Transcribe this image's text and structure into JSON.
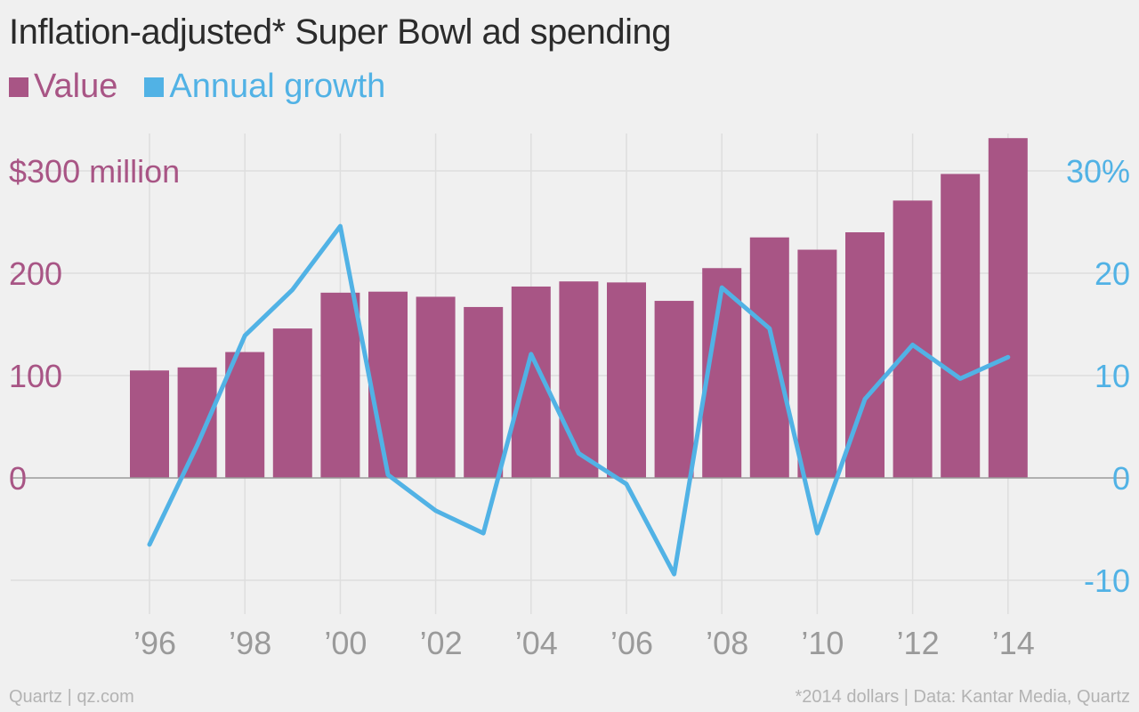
{
  "title": "Inflation-adjusted* Super Bowl ad spending",
  "legend": {
    "value_label": "Value",
    "growth_label": "Annual growth"
  },
  "footer": {
    "left": "Quartz | qz.com",
    "right": "*2014 dollars | Data: Kantar Media, Quartz"
  },
  "colors": {
    "value": "#a85585",
    "growth": "#51b2e5",
    "grid": "#dedede",
    "zero_line": "#9a9a9a",
    "x_tick_text": "#9a9a9a"
  },
  "chart_data": {
    "type": "bar+line",
    "title": "Inflation-adjusted* Super Bowl ad spending",
    "x": [
      1996,
      1997,
      1998,
      1999,
      2000,
      2001,
      2002,
      2003,
      2004,
      2005,
      2006,
      2007,
      2008,
      2009,
      2010,
      2011,
      2012,
      2013,
      2014
    ],
    "x_tick_labels": [
      "’96",
      "’98",
      "’00",
      "’02",
      "’04",
      "’06",
      "’08",
      "’10",
      "’12",
      "’14"
    ],
    "x_tick_years": [
      1996,
      1998,
      2000,
      2002,
      2004,
      2006,
      2008,
      2010,
      2012,
      2014
    ],
    "series": [
      {
        "name": "Value",
        "type": "bar",
        "axis": "left",
        "unit": "$ million",
        "values": [
          105,
          108,
          123,
          146,
          181,
          182,
          177,
          167,
          187,
          192,
          191,
          173,
          205,
          235,
          223,
          240,
          271,
          297,
          332
        ]
      },
      {
        "name": "Annual growth",
        "type": "line",
        "axis": "right",
        "unit": "%",
        "values": [
          -6.5,
          3.2,
          13.9,
          18.4,
          24.6,
          0.3,
          -3.2,
          -5.4,
          12.1,
          2.4,
          -0.6,
          -9.4,
          18.6,
          14.6,
          -5.4,
          7.7,
          13,
          9.7,
          11.8
        ]
      }
    ],
    "y_left": {
      "ticks": [
        0,
        100,
        200,
        300
      ],
      "tick_labels": [
        "0",
        "100",
        "200",
        "$300 million"
      ],
      "range": [
        -100,
        365
      ]
    },
    "y_right": {
      "ticks": [
        -10,
        0,
        10,
        20,
        30
      ],
      "tick_labels": [
        "-10",
        "0",
        "10",
        "20",
        "30%"
      ],
      "range": [
        -10,
        36.5
      ]
    },
    "grid": true,
    "legend_position": "top-left"
  }
}
